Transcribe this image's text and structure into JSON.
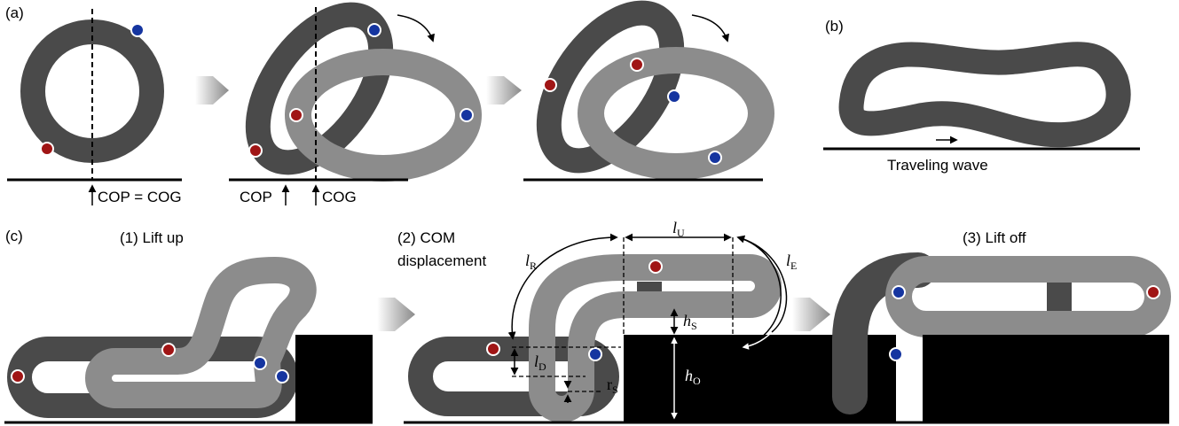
{
  "panel_a": {
    "label": "(a)",
    "cop_equals_cog": "COP = COG",
    "cop": "COP",
    "cog": "COG"
  },
  "panel_b": {
    "label": "(b)",
    "caption": "Traveling wave"
  },
  "panel_c": {
    "label": "(c)",
    "step_1": "(1) Lift up",
    "step_2": [
      "(2) COM",
      "displacement"
    ],
    "step_3": "(3) Lift off",
    "dimensions": {
      "l_U": {
        "symbol": "l",
        "subscript": "U"
      },
      "l_R": {
        "symbol": "l",
        "subscript": "R"
      },
      "l_E": {
        "symbol": "l",
        "subscript": "E"
      },
      "h_S": {
        "symbol": "h",
        "subscript": "S"
      },
      "l_D": {
        "symbol": "l",
        "subscript": "D"
      },
      "r_S": {
        "symbol": "r",
        "subscript": "S"
      },
      "h_O": {
        "symbol": "h",
        "subscript": "O"
      }
    }
  }
}
